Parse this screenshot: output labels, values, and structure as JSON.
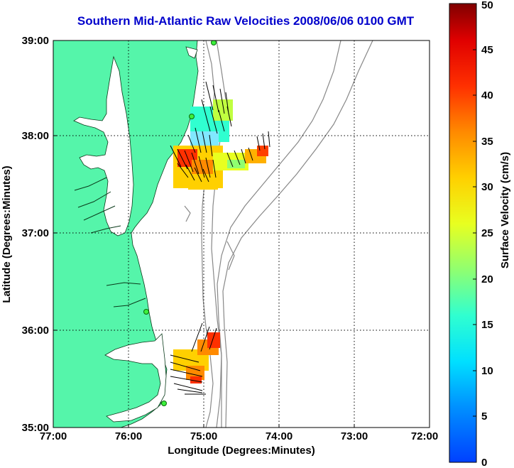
{
  "title": "Southern Mid-Atlantic Raw Velocities 2008/06/06 0100 GMT",
  "xlabel": "Longitude (Degrees:Minutes)",
  "ylabel": "Latitude (Degrees:Minutes)",
  "x_ticks": [
    "77:00",
    "76:00",
    "75:00",
    "74:00",
    "73:00",
    "72:00"
  ],
  "y_ticks": [
    "39:00",
    "38:00",
    "37:00",
    "36:00",
    "35:00"
  ],
  "colorbar": {
    "label": "Surface Velocity (cm/s)",
    "ticks": [
      "0",
      "5",
      "10",
      "15",
      "20",
      "25",
      "30",
      "35",
      "40",
      "45",
      "50"
    ]
  },
  "colors": {
    "land": "#55f5aa",
    "title": "#0000cc",
    "bathymetry": "#888888"
  }
}
